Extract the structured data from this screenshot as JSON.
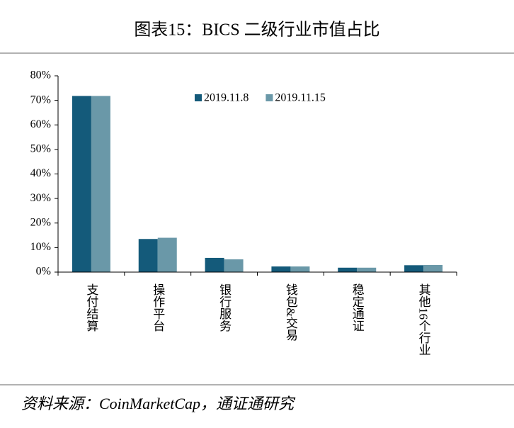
{
  "chart_data": {
    "type": "bar",
    "title": "图表15：BICS 二级行业市值占比",
    "source": "资料来源：CoinMarketCap，通证通研究",
    "categories": [
      "支付结算",
      "操作平台",
      "银行服务",
      "钱包&交易",
      "稳定通证",
      "其他16个行业"
    ],
    "series": [
      {
        "name": "2019.11.8",
        "color": "#145a7a",
        "values": [
          71.8,
          13.5,
          5.8,
          2.3,
          1.8,
          2.8
        ]
      },
      {
        "name": "2019.11.15",
        "color": "#6a98a8",
        "values": [
          71.8,
          14.0,
          5.2,
          2.3,
          1.8,
          2.9
        ]
      }
    ],
    "ylim": [
      0,
      80
    ],
    "yticks": [
      {
        "value": 0,
        "label": "0%"
      },
      {
        "value": 10,
        "label": "10%"
      },
      {
        "value": 20,
        "label": "20%"
      },
      {
        "value": 30,
        "label": "30%"
      },
      {
        "value": 40,
        "label": "40%"
      },
      {
        "value": 50,
        "label": "50%"
      },
      {
        "value": 60,
        "label": "60%"
      },
      {
        "value": 70,
        "label": "70%"
      },
      {
        "value": 80,
        "label": "80%"
      }
    ],
    "grid": false,
    "legend_position": "top-center"
  }
}
